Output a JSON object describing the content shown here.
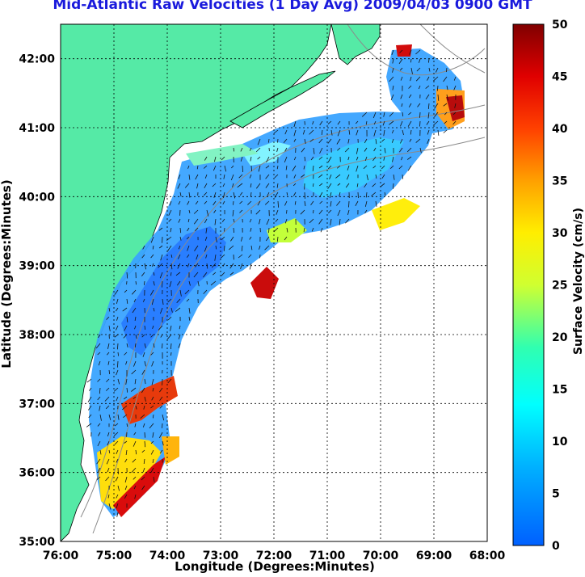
{
  "title": "Mid-Atlantic Raw Velocities (1 Day Avg) 2009/04/03 0900 GMT",
  "xlabel": "Longitude (Degrees:Minutes)",
  "ylabel": "Latitude (Degrees:Minutes)",
  "colorbar_label": "Surface Velocity (cm/s)",
  "x_ticks": [
    "76:00",
    "75:00",
    "74:00",
    "73:00",
    "72:00",
    "71:00",
    "70:00",
    "69:00",
    "68:00"
  ],
  "y_ticks": [
    "42:00",
    "41:00",
    "40:00",
    "39:00",
    "38:00",
    "37:00",
    "36:00",
    "35:00"
  ],
  "colorbar_ticks": [
    "50",
    "45",
    "40",
    "35",
    "30",
    "25",
    "20",
    "15",
    "10",
    "5",
    "0"
  ],
  "colors": {
    "land": "#55eaa6",
    "water_bg": "#ffffff",
    "title": "#1a1adc",
    "arrow": "#111111",
    "contour": "#8a8a8a"
  },
  "chart_data": {
    "type": "heatmap",
    "x_range_deg_west": [
      76,
      68
    ],
    "y_range_deg_north": [
      35,
      42.5
    ],
    "colorbar_range_cm_s": [
      0,
      50
    ],
    "colormap": "jet",
    "grid": true
  }
}
